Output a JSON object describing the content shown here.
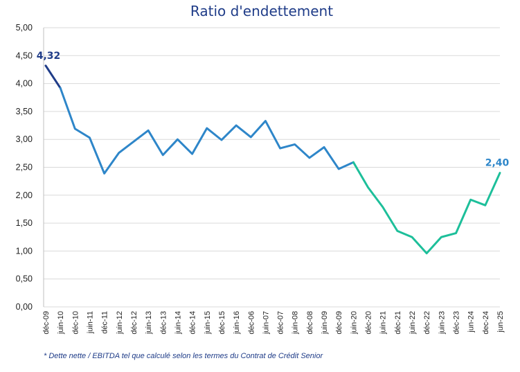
{
  "chart_data": {
    "type": "line",
    "title": "Ratio d'endettement",
    "xlabel": "",
    "ylabel": "",
    "ylim": [
      0,
      5
    ],
    "yticks": [
      "0,00",
      "0,50",
      "1,00",
      "1,50",
      "2,00",
      "2,50",
      "3,00",
      "3,50",
      "4,00",
      "4,50",
      "5,00"
    ],
    "categories": [
      "déc-09",
      "juin-10",
      "déc-10",
      "juin-11",
      "déc-11",
      "juin-12",
      "déc-12",
      "juin-13",
      "déc-13",
      "juin-14",
      "déc-14",
      "juin-15",
      "déc-15",
      "juin-16",
      "déc-06",
      "juin-07",
      "déc-07",
      "juin-08",
      "déc-08",
      "juin-09",
      "déc-09",
      "juin-20",
      "déc-20",
      "juin-21",
      "déc-21",
      "juin-22",
      "déc-22",
      "juin-23",
      "déc-23",
      "jun-24",
      "dec-24",
      "jun-25"
    ],
    "values": [
      4.32,
      3.92,
      3.19,
      3.03,
      2.39,
      2.76,
      2.96,
      3.16,
      2.72,
      3.0,
      2.74,
      3.2,
      2.99,
      3.25,
      3.04,
      3.33,
      2.84,
      2.91,
      2.67,
      2.86,
      2.47,
      2.59,
      2.14,
      1.79,
      1.36,
      1.25,
      0.96,
      1.25,
      1.32,
      1.92,
      1.82,
      2.4
    ],
    "segments": [
      {
        "from": 0,
        "to": 1,
        "color": "#1f3c88"
      },
      {
        "from": 1,
        "to": 21,
        "color": "#2e86c9"
      },
      {
        "from": 21,
        "to": 31,
        "color": "#1dbf9a"
      }
    ],
    "data_labels": [
      {
        "index": 0,
        "text": "4,32",
        "color": "#1f3c88"
      },
      {
        "index": 31,
        "text": "2,40",
        "color": "#2e86c9"
      }
    ],
    "grid": true,
    "legend": "none"
  },
  "footnote": "* Dette nette / EBITDA tel que calculé selon les termes du Contrat de Crédit Senior"
}
